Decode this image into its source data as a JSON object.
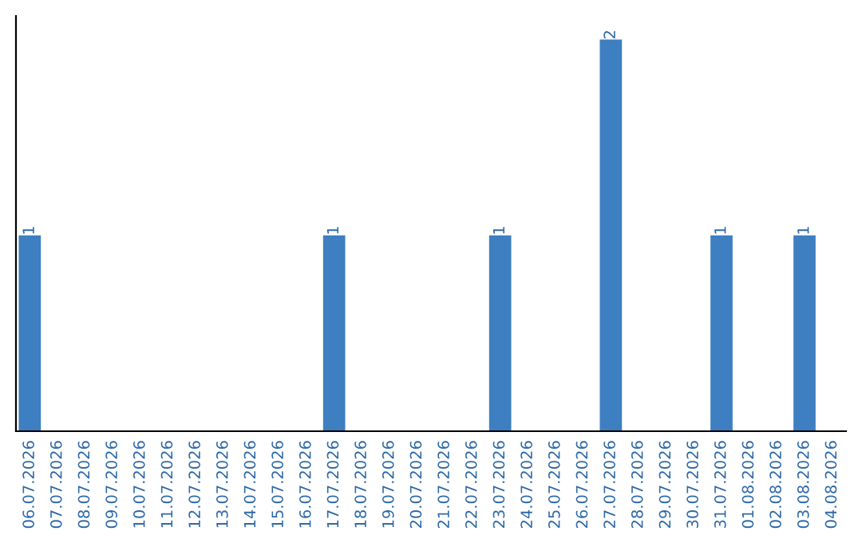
{
  "chart_data": {
    "type": "bar",
    "categories": [
      "06.07.2026",
      "07.07.2026",
      "08.07.2026",
      "09.07.2026",
      "10.07.2026",
      "11.07.2026",
      "12.07.2026",
      "13.07.2026",
      "14.07.2026",
      "15.07.2026",
      "16.07.2026",
      "17.07.2026",
      "18.07.2026",
      "19.07.2026",
      "20.07.2026",
      "21.07.2026",
      "22.07.2026",
      "23.07.2026",
      "24.07.2026",
      "25.07.2026",
      "26.07.2026",
      "27.07.2026",
      "28.07.2026",
      "29.07.2026",
      "30.07.2026",
      "31.07.2026",
      "01.08.2026",
      "02.08.2026",
      "03.08.2026",
      "04.08.2026"
    ],
    "values": [
      1,
      0,
      0,
      0,
      0,
      0,
      0,
      0,
      0,
      0,
      0,
      1,
      0,
      0,
      0,
      0,
      0,
      1,
      0,
      0,
      0,
      2,
      0,
      0,
      0,
      1,
      0,
      0,
      1,
      0
    ],
    "color": "#3d7fc1",
    "value_labels": [
      "1",
      null,
      null,
      null,
      null,
      null,
      null,
      null,
      null,
      null,
      null,
      "1",
      null,
      null,
      null,
      null,
      null,
      "1",
      null,
      null,
      null,
      "2",
      null,
      null,
      null,
      "1",
      null,
      null,
      "1",
      null
    ],
    "tick_labels": "x",
    "grid": false,
    "legend": false
  }
}
